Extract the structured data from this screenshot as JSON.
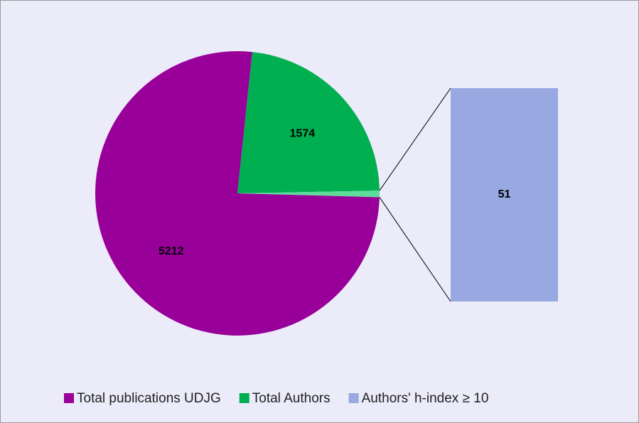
{
  "chart_data": {
    "type": "pie_of_bar",
    "categories": [
      "Total publications UDJG",
      "Total Authors",
      "Authors' h-index ≥ 10"
    ],
    "values": [
      5212,
      1574,
      51
    ],
    "colors": [
      "#990099",
      "#00b050",
      "#98a8e0"
    ],
    "split_color": "#5fdc9c"
  }
}
